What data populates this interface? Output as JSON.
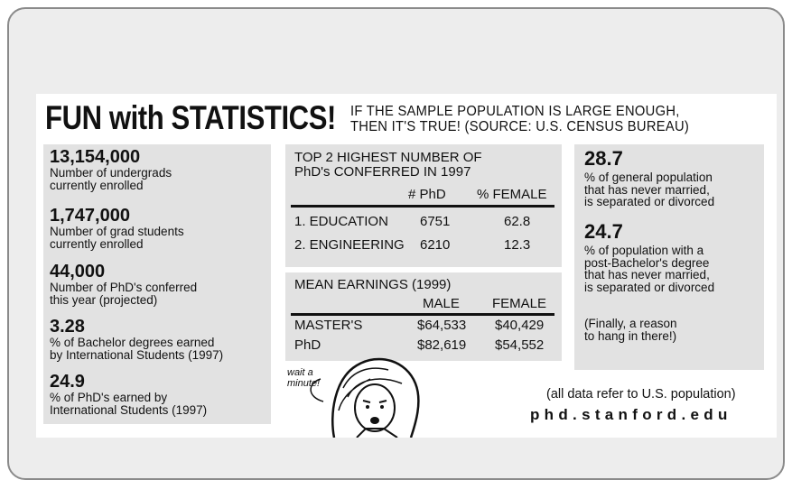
{
  "header": {
    "title": "FUN with STATISTICS!",
    "subtitle_lines": [
      "IF THE SAMPLE POPULATION IS LARGE ENOUGH,",
      "THEN IT'S TRUE!  (SOURCE: U.S. CENSUS BUREAU)"
    ]
  },
  "left_stats": [
    {
      "value": "13,154,000",
      "lines": [
        "Number of undergrads",
        "currently enrolled"
      ]
    },
    {
      "value": "1,747,000",
      "lines": [
        "Number of grad students",
        "currently enrolled"
      ]
    },
    {
      "value": "44,000",
      "lines": [
        "Number of PhD's conferred",
        "this year (projected)"
      ]
    },
    {
      "value": 3.28,
      "lines": [
        "% of Bachelor degrees earned",
        "by International Students (1997)"
      ]
    },
    {
      "value": 24.9,
      "lines": [
        "% of PhD's earned by",
        "International Students (1997)"
      ]
    }
  ],
  "phd_table": {
    "title_lines": [
      "TOP 2 HIGHEST NUMBER OF",
      "PhD's CONFERRED IN 1997"
    ],
    "columns": [
      "# PhD",
      "% FEMALE"
    ],
    "rows": [
      [
        "1. EDUCATION",
        6751,
        62.8
      ],
      [
        "2. ENGINEERING",
        6210,
        12.3
      ]
    ]
  },
  "earnings_table": {
    "title": "MEAN EARNINGS (1999)",
    "columns": [
      "MALE",
      "FEMALE"
    ],
    "rows": [
      [
        "MASTER'S",
        "$64,533",
        "$40,429"
      ],
      [
        "PhD",
        "$82,619",
        "$54,552"
      ]
    ]
  },
  "right_stats": [
    {
      "value": 28.7,
      "lines": [
        "% of general population",
        "that has never married,",
        "is separated or divorced"
      ]
    },
    {
      "value": 24.7,
      "lines": [
        "% of population with a",
        "post-Bachelor's degree",
        "that has never married,",
        "is separated or divorced"
      ]
    }
  ],
  "right_note": [
    "(Finally, a reason",
    "to hang in there!)"
  ],
  "cartoon_caption": [
    "wait a",
    "minute!"
  ],
  "footer": {
    "note": "(all data refer to U.S. population)",
    "url": "phd.stanford.edu"
  }
}
